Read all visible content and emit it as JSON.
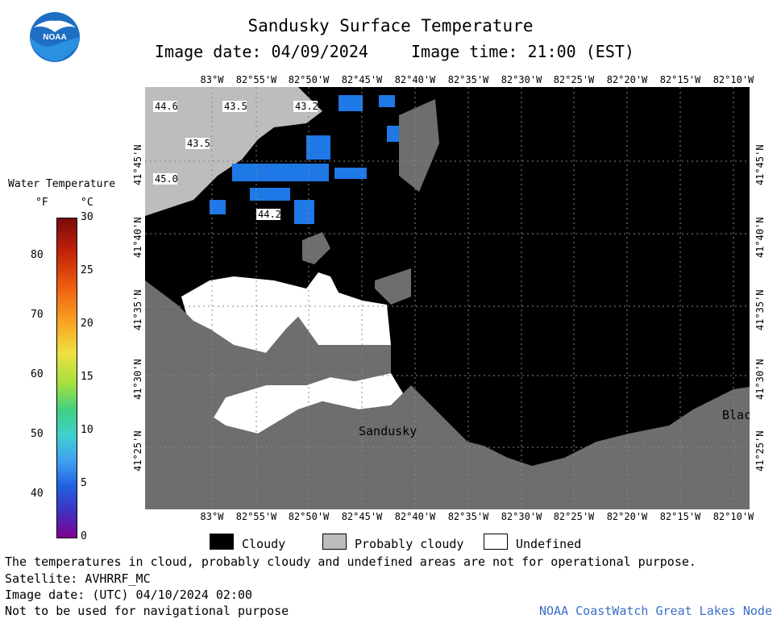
{
  "header": {
    "title": "Sandusky Surface Temperature",
    "image_date": "Image date: 04/09/2024",
    "image_time": "Image time: 21:00 (EST)"
  },
  "logo": {
    "text": "NOAA"
  },
  "colorbar": {
    "title": "Water Temperature",
    "unit_f": "°F",
    "unit_c": "°C",
    "f_ticks": [
      "80",
      "70",
      "60",
      "50",
      "40"
    ],
    "c_ticks": [
      "30",
      "25",
      "20",
      "15",
      "10",
      "5",
      "0"
    ]
  },
  "map": {
    "lon_labels": [
      "83°W",
      "82°55'W",
      "82°50'W",
      "82°45'W",
      "82°40'W",
      "82°35'W",
      "82°30'W",
      "82°25'W",
      "82°20'W",
      "82°15'W",
      "82°10'W"
    ],
    "lat_labels": [
      "41°45'N",
      "41°40'N",
      "41°35'N",
      "41°30'N",
      "41°25'N"
    ],
    "temperature_labels": [
      "44.6",
      "43.5",
      "43.2",
      "43.5",
      "45.0",
      "44.2"
    ],
    "place_labels": [
      "Sandusky",
      "Blac"
    ]
  },
  "legend": {
    "cloudy": "Cloudy",
    "probably_cloudy": "Probably cloudy",
    "undefined": "Undefined"
  },
  "footer": {
    "disclaimer": "The temperatures in cloud, probably cloudy and undefined areas are not for operational purpose.",
    "satellite": "Satellite: AVHRRF_MC",
    "utc_date": "Image date: (UTC) 04/10/2024  02:00",
    "nav_warning": "Not to be used for navigational purpose",
    "credit": "NOAA CoastWatch Great Lakes Node"
  },
  "colors": {
    "cloudy": "#000000",
    "probably_cloudy": "#bdbdbd",
    "land": "#6e6e6e",
    "undefined": "#ffffff",
    "water_blue": "#1e78e6",
    "credit": "#3a6fc4"
  }
}
